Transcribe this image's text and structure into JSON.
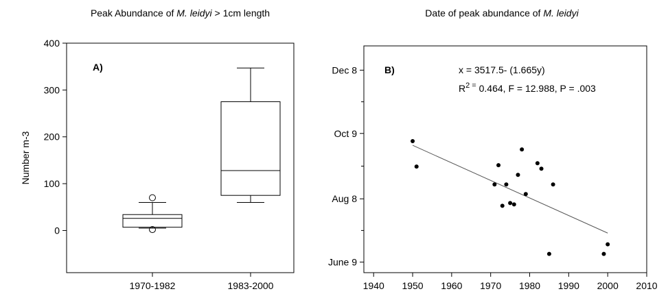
{
  "chart_data": [
    {
      "type": "box",
      "title": [
        "Peak Abundance of ",
        "M. leidyi",
        " > 1cm length"
      ],
      "panel_label": "A)",
      "ylabel": "Number m-3",
      "ylim": [
        -90,
        400
      ],
      "yticks": [
        0,
        100,
        200,
        300,
        400
      ],
      "color": "#000000",
      "categories": [
        "1970-1982",
        "1983-2000"
      ],
      "boxes": [
        {
          "whislo": 5,
          "q1": 7,
          "med": 26,
          "q3": 34,
          "whishi": 60,
          "fliers": [
            70,
            2
          ]
        },
        {
          "whislo": 60,
          "q1": 75,
          "med": 128,
          "q3": 275,
          "whishi": 347,
          "fliers": []
        }
      ]
    },
    {
      "type": "scatter",
      "title": [
        "Date of peak abundance of ",
        "M. leidyi"
      ],
      "panel_label": "B)",
      "annotations": [
        [
          "x = 3517.5- (1.665y)"
        ],
        [
          "R",
          "2 =",
          " 0.464, F = 12.988, P = .003"
        ]
      ],
      "xlim": [
        1937.5,
        2010
      ],
      "xticks": [
        1940,
        1950,
        1960,
        1970,
        1980,
        1990,
        2000,
        2010
      ],
      "ylim": [
        150,
        365
      ],
      "yticks": [
        {
          "value": 160,
          "label": "June 9"
        },
        {
          "value": 220,
          "label": "Aug 8"
        },
        {
          "value": 282,
          "label": "Oct 9"
        },
        {
          "value": 342,
          "label": "Dec 8"
        }
      ],
      "color": "#000000",
      "x": [
        1950,
        1951,
        1971,
        1972,
        1973,
        1974,
        1975,
        1976,
        1977,
        1978,
        1979,
        1982,
        1983,
        1985,
        1986,
        1999,
        2000
      ],
      "y": [
        274.7,
        250.6,
        233.6,
        251.9,
        213.4,
        233.6,
        216,
        214.7,
        242.7,
        266.8,
        224.5,
        253.8,
        248.6,
        167.8,
        233.6,
        167.8,
        176.9
      ],
      "fit": {
        "x": [
          1950,
          2000
        ],
        "y": [
          270.75,
          187.5
        ]
      }
    }
  ]
}
